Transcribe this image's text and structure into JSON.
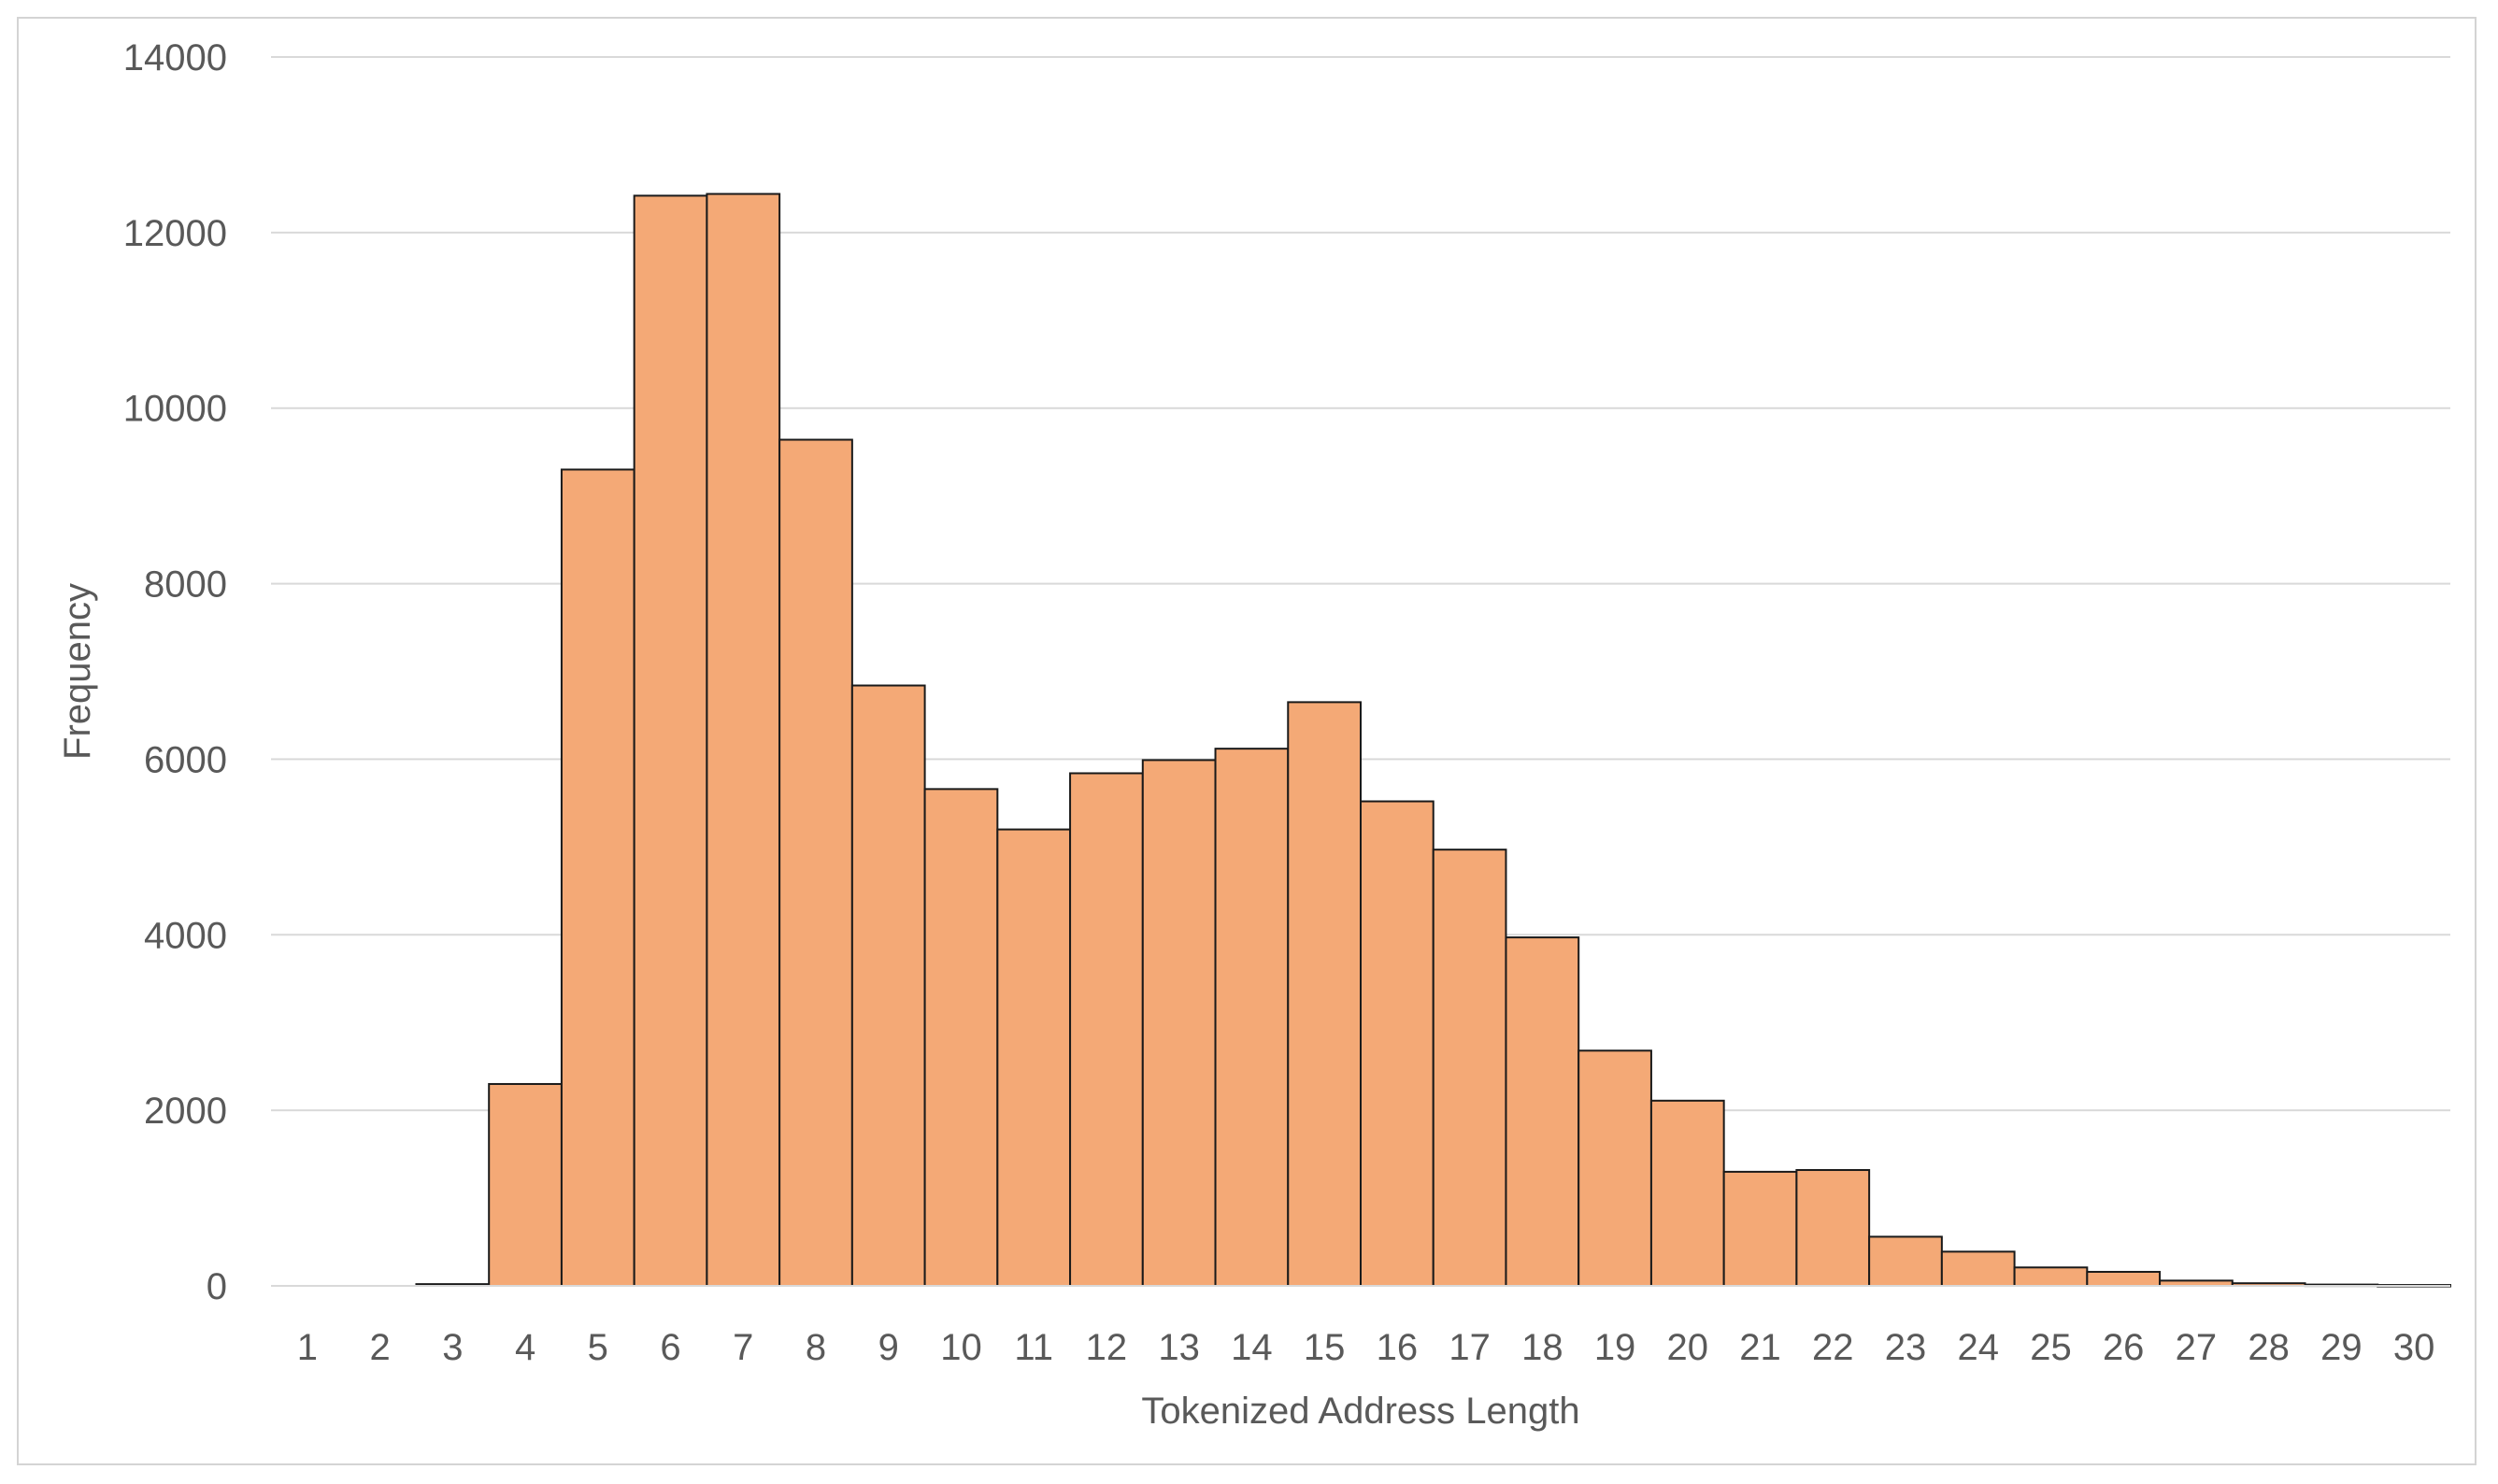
{
  "chart_data": {
    "type": "bar",
    "title": "",
    "xlabel": "Tokenized Address Length",
    "ylabel": "Frequency",
    "ylim": [
      0,
      14000
    ],
    "yticks": [
      0,
      2000,
      4000,
      6000,
      8000,
      10000,
      12000,
      14000
    ],
    "grid": true,
    "legend": "none",
    "bar_color": "#f4a976",
    "bar_edge_color": "#1a1a1a",
    "grid_color": "#d9d9d9",
    "categories": [
      "1",
      "2",
      "3",
      "4",
      "5",
      "6",
      "7",
      "8",
      "9",
      "10",
      "11",
      "12",
      "13",
      "14",
      "15",
      "16",
      "17",
      "18",
      "19",
      "20",
      "21",
      "22",
      "23",
      "24",
      "25",
      "26",
      "27",
      "28",
      "29",
      "30"
    ],
    "values": [
      0,
      0,
      20,
      2300,
      9300,
      12420,
      12440,
      9640,
      6840,
      5660,
      5200,
      5840,
      5990,
      6120,
      6650,
      5520,
      4970,
      3970,
      2680,
      2110,
      1300,
      1320,
      560,
      390,
      210,
      160,
      60,
      30,
      15,
      10
    ]
  }
}
